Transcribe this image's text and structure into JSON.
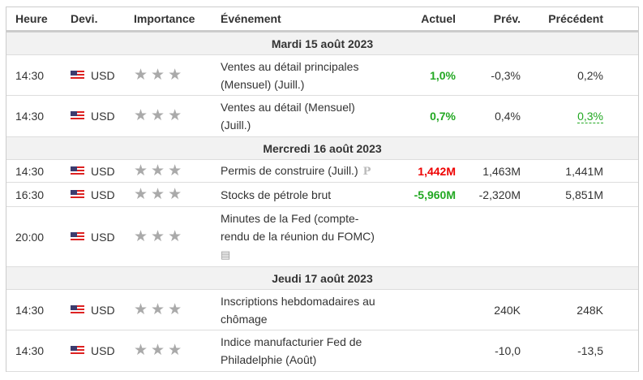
{
  "headers": {
    "time": "Heure",
    "cur": "Devi.",
    "imp": "Importance",
    "event": "Événement",
    "actual": "Actuel",
    "forecast": "Prév.",
    "previous": "Précédent"
  },
  "groups": [
    "Mardi 15 août 2023",
    "Mercredi 16 août 2023",
    "Jeudi 17 août 2023"
  ],
  "rows": [
    {
      "time": "14:30",
      "cur": "USD",
      "event": "Ventes au détail principales (Mensuel) (Juill.)",
      "actual": "1,0%",
      "forecast": "-0,3%",
      "previous": "0,2%"
    },
    {
      "time": "14:30",
      "cur": "USD",
      "event": "Ventes au détail (Mensuel) (Juill.)",
      "actual": "0,7%",
      "forecast": "0,4%",
      "previous": "0,3%"
    },
    {
      "time": "14:30",
      "cur": "USD",
      "event": "Permis de construire (Juill.)",
      "actual": "1,442M",
      "forecast": "1,463M",
      "previous": "1,441M"
    },
    {
      "time": "16:30",
      "cur": "USD",
      "event": "Stocks de pétrole brut",
      "actual": "-5,960M",
      "forecast": "-2,320M",
      "previous": "5,851M"
    },
    {
      "time": "20:00",
      "cur": "USD",
      "event": "Minutes de la Fed (compte-rendu de la réunion du FOMC)",
      "actual": "",
      "forecast": "",
      "previous": ""
    },
    {
      "time": "14:30",
      "cur": "USD",
      "event": "Inscriptions hebdomadaires au chômage",
      "actual": "",
      "forecast": "240K",
      "previous": "248K"
    },
    {
      "time": "14:30",
      "cur": "USD",
      "event": "Indice manufacturier Fed de Philadelphie (Août)",
      "actual": "",
      "forecast": "-10,0",
      "previous": "-13,5"
    }
  ],
  "importance_stars": 3,
  "preliminary_marker": "P",
  "colors": {
    "better": "#22a822",
    "worse": "#e00000"
  }
}
